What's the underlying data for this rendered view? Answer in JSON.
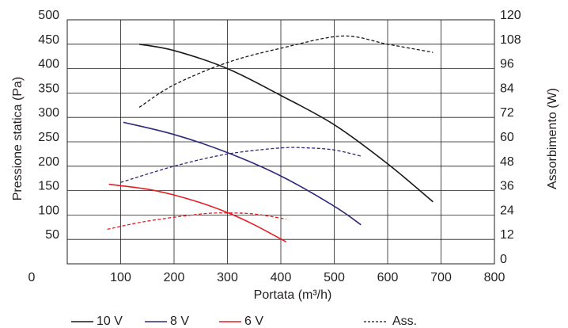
{
  "chart_data": {
    "type": "line",
    "xlabel": "Portata (m³/h)",
    "ylabel_left": "Pressione statica (Pa)",
    "ylabel_right": "Assorbimento (W)",
    "x_ticks": [
      "0",
      "100",
      "200",
      "300",
      "400",
      "500",
      "600",
      "700",
      "800"
    ],
    "y_left_ticks": [
      "0",
      "50",
      "100",
      "150",
      "200",
      "250",
      "300",
      "350",
      "400",
      "450",
      "500"
    ],
    "y_right_ticks": [
      "0",
      "12",
      "24",
      "36",
      "48",
      "60",
      "72",
      "84",
      "96",
      "108",
      "120"
    ],
    "xlim": [
      0,
      800
    ],
    "ylim_left": [
      0,
      500
    ],
    "ylim_right": [
      0,
      120
    ],
    "grid": true,
    "legend_position": "bottom",
    "series": [
      {
        "name": "10 V",
        "axis": "left",
        "style": "solid",
        "color": "#1a1a1a",
        "x": [
          135,
          200,
          300,
          400,
          500,
          600,
          685
        ],
        "y": [
          450,
          437,
          400,
          345,
          285,
          205,
          127
        ]
      },
      {
        "name": "8 V",
        "axis": "left",
        "style": "solid",
        "color": "#2e2a7a",
        "x": [
          105,
          200,
          300,
          400,
          500,
          550
        ],
        "y": [
          290,
          265,
          228,
          180,
          118,
          80
        ]
      },
      {
        "name": "6 V",
        "axis": "left",
        "style": "solid",
        "color": "#e31e24",
        "x": [
          78,
          150,
          200,
          250,
          300,
          350,
          410
        ],
        "y": [
          163,
          153,
          141,
          125,
          105,
          80,
          45
        ]
      },
      {
        "name": "Ass.",
        "axis": "right",
        "style": "dashed",
        "color": "#1a1a1a",
        "legend": false,
        "x": [
          135,
          200,
          300,
          400,
          515,
          600,
          685
        ],
        "y": [
          77,
          88,
          99,
          106,
          112,
          108,
          104
        ]
      },
      {
        "name": "8 V Ass.",
        "axis": "right",
        "style": "dashed",
        "color": "#2e2a7a",
        "legend": false,
        "x": [
          100,
          200,
          300,
          400,
          450,
          500,
          550
        ],
        "y": [
          40,
          48,
          54,
          57,
          57,
          56,
          53
        ]
      },
      {
        "name": "6 V Ass.",
        "axis": "right",
        "style": "dashed",
        "color": "#e31e24",
        "legend": false,
        "x": [
          75,
          150,
          250,
          300,
          350,
          410
        ],
        "y": [
          17,
          21,
          24.5,
          25,
          24.5,
          22
        ]
      }
    ],
    "legend": [
      {
        "label": "10 V",
        "color": "#1a1a1a",
        "style": "solid"
      },
      {
        "label": "8 V",
        "color": "#2e2a7a",
        "style": "solid"
      },
      {
        "label": "6 V",
        "color": "#e31e24",
        "style": "solid"
      },
      {
        "label": "Ass.",
        "color": "#1a1a1a",
        "style": "dashed"
      }
    ]
  }
}
